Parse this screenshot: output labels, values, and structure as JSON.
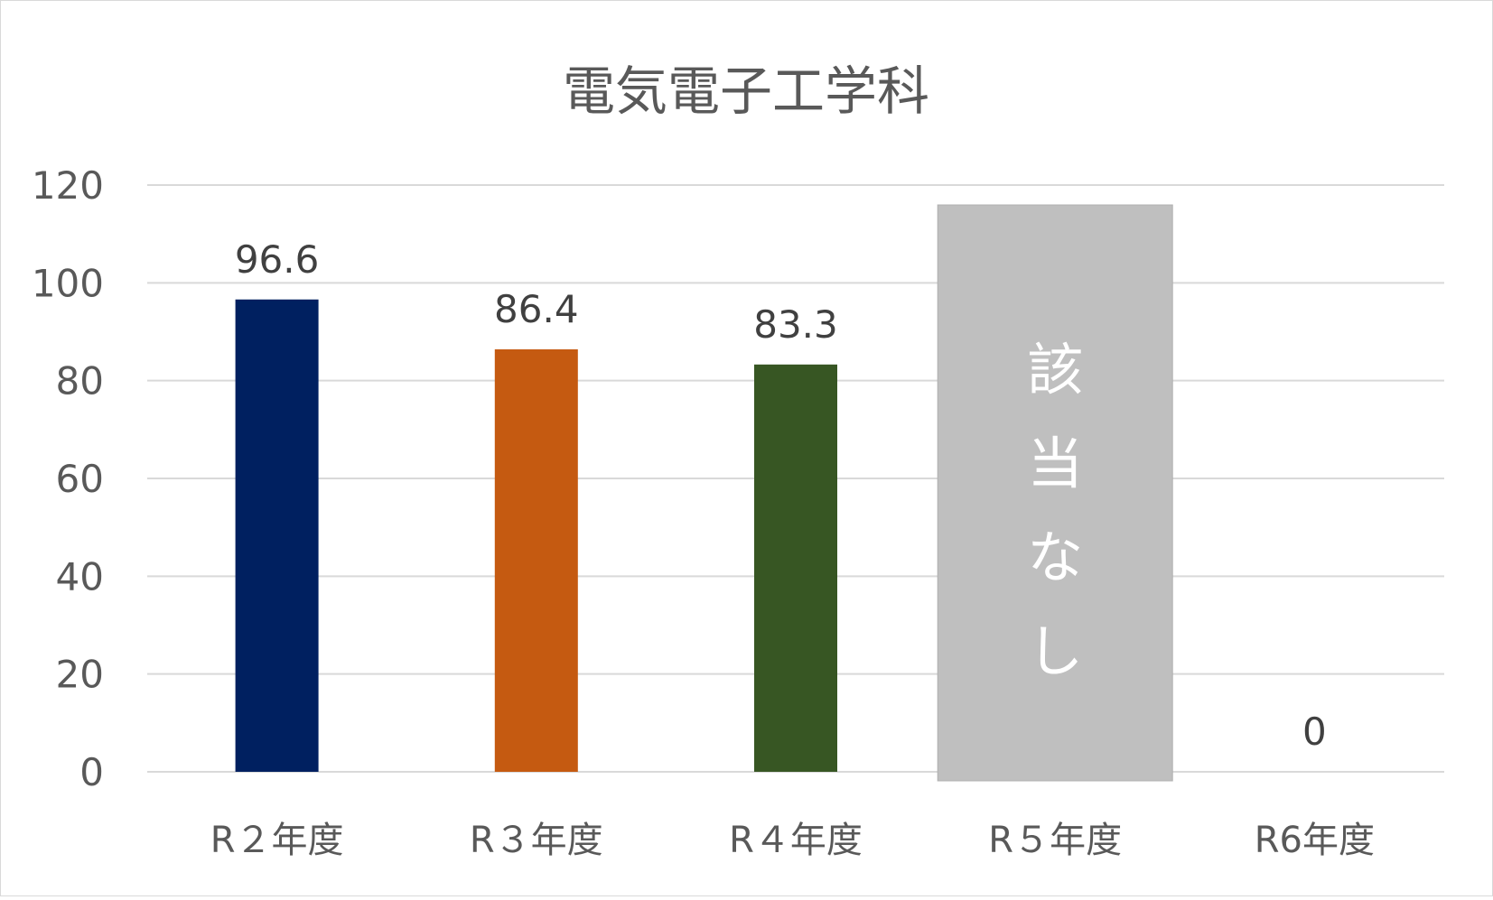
{
  "chart_data": {
    "type": "bar",
    "title": "電気電子工学科",
    "xlabel": "",
    "ylabel": "",
    "ylim": [
      0,
      120
    ],
    "yticks": [
      0,
      20,
      40,
      60,
      80,
      100,
      120
    ],
    "categories": [
      "R２年度",
      "R３年度",
      "R４年度",
      "R５年度",
      "R6年度"
    ],
    "values": [
      96.6,
      86.4,
      83.3,
      null,
      0
    ],
    "data_labels": [
      "96.6",
      "86.4",
      "83.3",
      "",
      "0"
    ],
    "bar_colors": [
      "#002060",
      "#C55A11",
      "#375623",
      "#BFBFBF",
      "#BFBFBF"
    ],
    "grid": true,
    "legend": "none",
    "annotation": {
      "category": "R５年度",
      "text": [
        "該",
        "当",
        "な",
        "し"
      ],
      "box_color": "#BFBFBF",
      "text_color": "#FFFFFF"
    }
  }
}
